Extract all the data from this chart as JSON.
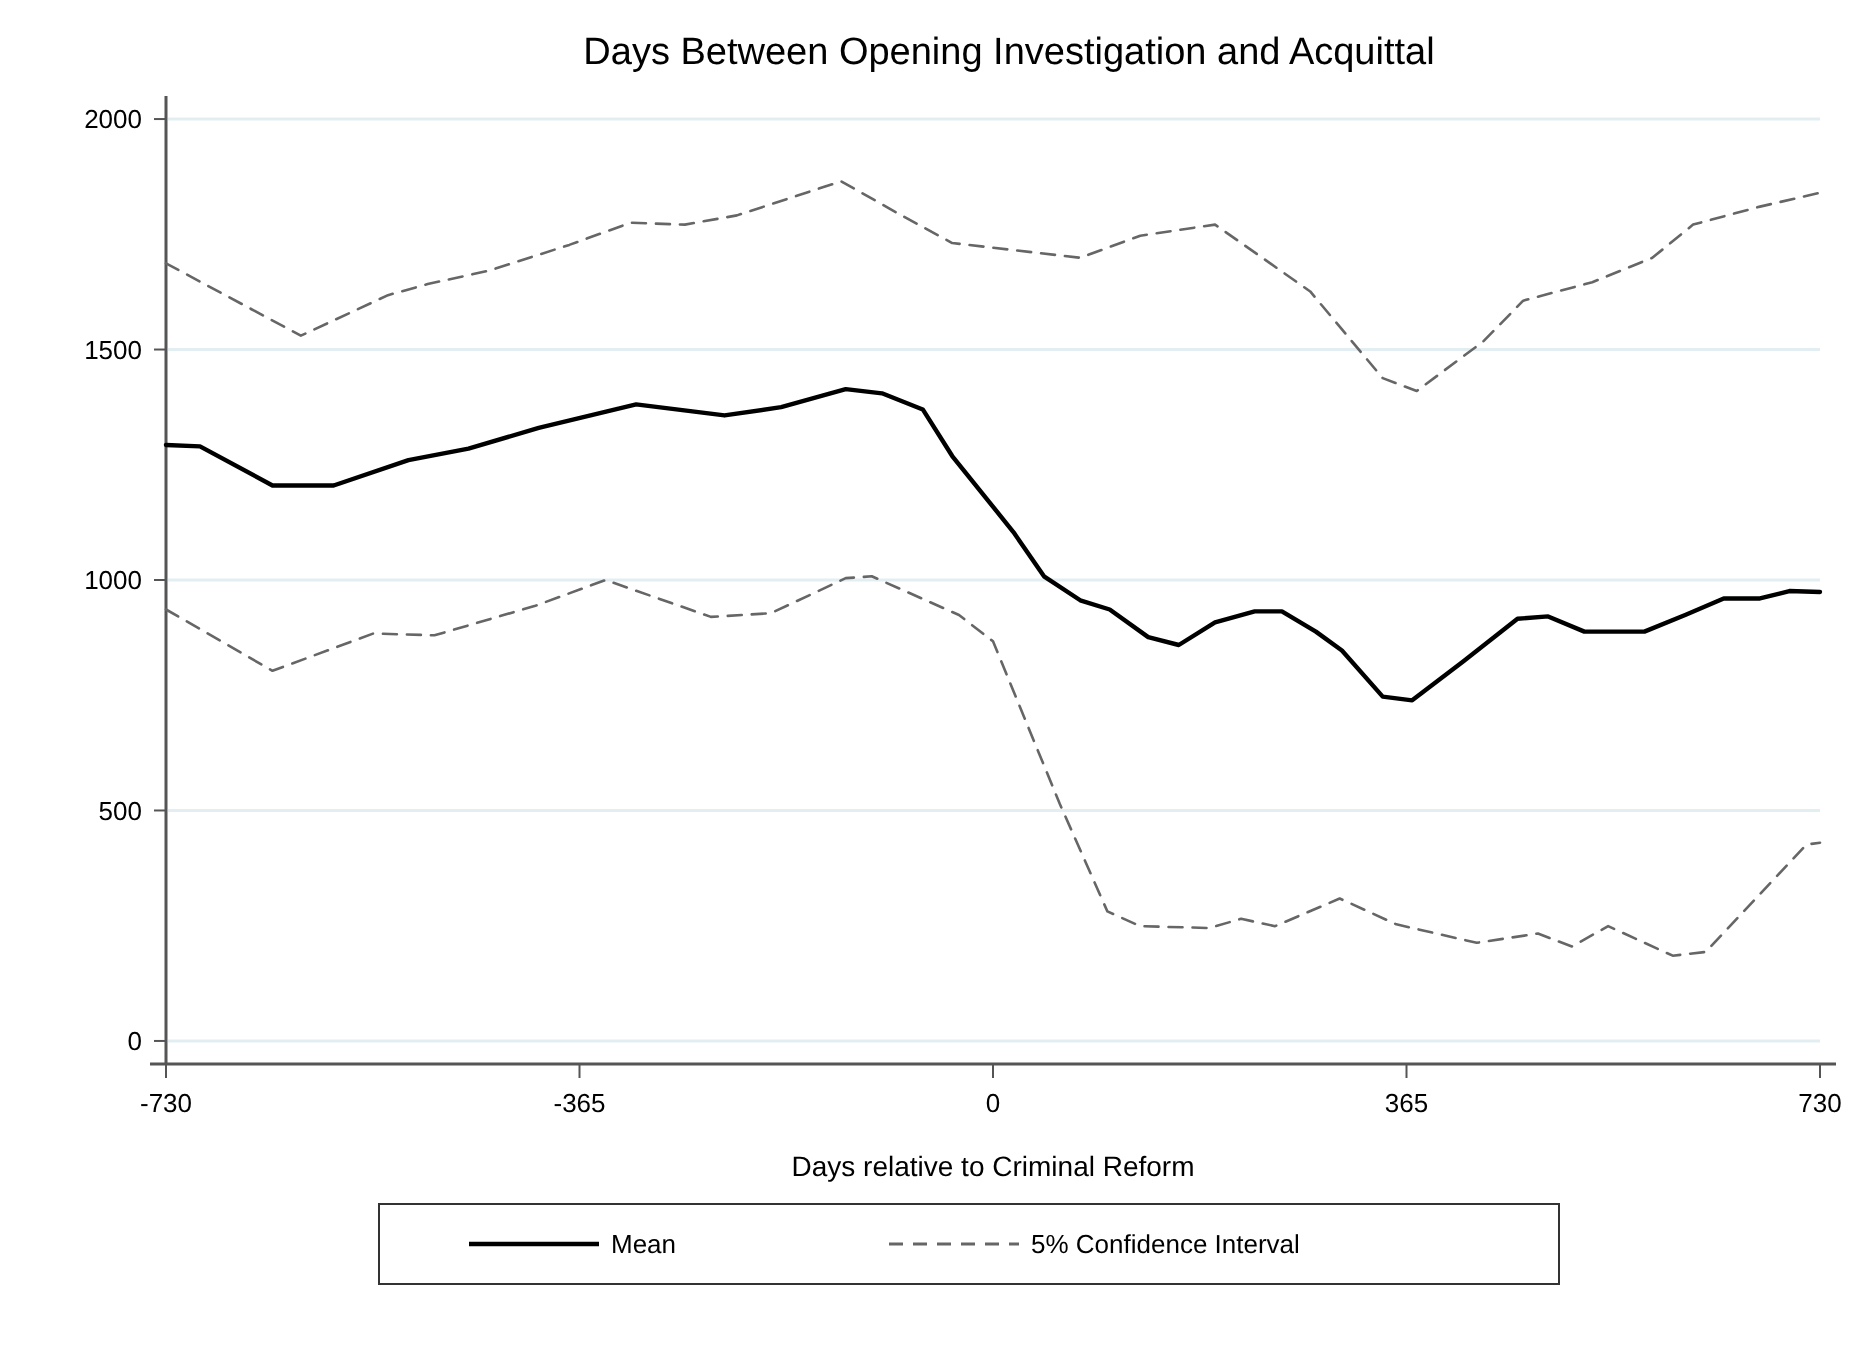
{
  "chart_data": {
    "type": "line",
    "title": "Days Between Opening Investigation and Acquittal",
    "xlabel": "Days relative to Criminal Reform",
    "xlim": [
      -730,
      730
    ],
    "xticks": [
      -730,
      -365,
      0,
      365,
      730
    ],
    "ylim": [
      -50,
      2050
    ],
    "yticks": [
      0,
      500,
      1000,
      1500,
      2000
    ],
    "grid": "y",
    "legend": "bottom",
    "marker": "none",
    "series": [
      {
        "name": "Mean",
        "color": "#000000",
        "line_style": "solid",
        "x": [
          -730,
          -700,
          -636,
          -582,
          -516,
          -463,
          -401,
          -315,
          -237,
          -187,
          -130,
          -98,
          -62,
          -36,
          18,
          45,
          77,
          103,
          137,
          164,
          196,
          231,
          255,
          285,
          308,
          344,
          370,
          415,
          463,
          490,
          522,
          575,
          611,
          645,
          677,
          703,
          730
        ],
        "values": [
          1293,
          1290,
          1205,
          1205,
          1260,
          1285,
          1330,
          1381,
          1357,
          1375,
          1414,
          1405,
          1370,
          1269,
          1104,
          1008,
          956,
          936,
          876,
          859,
          908,
          932,
          932,
          888,
          847,
          747,
          739,
          823,
          916,
          921,
          888,
          888,
          924,
          960,
          960,
          976,
          974
        ]
      },
      {
        "name": "5% Confidence Interval",
        "color": "#666666",
        "line_style": "dashed",
        "x": [
          -730,
          -611,
          -534,
          -499,
          -445,
          -374,
          -320,
          -272,
          -226,
          -134,
          -80,
          -36,
          77,
          130,
          196,
          280,
          344,
          374,
          433,
          468,
          529,
          582,
          618,
          677,
          730
        ],
        "values": [
          1687,
          1530,
          1618,
          1642,
          1671,
          1727,
          1775,
          1771,
          1791,
          1865,
          1790,
          1731,
          1699,
          1747,
          1771,
          1626,
          1438,
          1410,
          1518,
          1606,
          1646,
          1699,
          1771,
          1810,
          1840
        ]
      },
      {
        "color": "#666666",
        "line_style": "dashed",
        "x": [
          -730,
          -636,
          -547,
          -493,
          -404,
          -342,
          -249,
          -196,
          -130,
          -107,
          -30,
          0,
          59,
          101,
          130,
          191,
          219,
          249,
          306,
          356,
          427,
          481,
          511,
          543,
          600,
          629,
          718,
          730
        ],
        "values": [
          936,
          803,
          884,
          880,
          944,
          1000,
          920,
          928,
          1004,
          1008,
          924,
          867,
          514,
          281,
          249,
          245,
          265,
          249,
          309,
          253,
          213,
          233,
          205,
          249,
          185,
          193,
          426,
          430
        ]
      }
    ]
  }
}
